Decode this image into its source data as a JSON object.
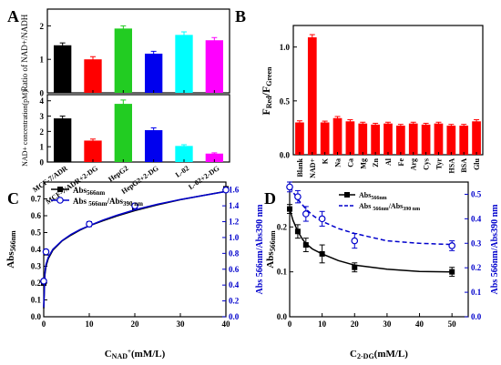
{
  "panels": {
    "A": "A",
    "B": "B",
    "C": "C",
    "D": "D"
  },
  "colors": {
    "black": "#000000",
    "red": "#ff0000",
    "green": "#22cc22",
    "blue": "#0000ee",
    "cyan": "#00ffff",
    "magenta": "#ff00ff",
    "axis_blue": "#0000cc"
  },
  "chart_data": [
    {
      "id": "A-top",
      "type": "bar",
      "ylabel": "Ratio of NAD+/NADH",
      "ylim": [
        0,
        2.5
      ],
      "yticks": [
        0,
        1,
        2
      ],
      "categories": [
        "MCF-7/ADR",
        "MCF-7/ADR+2-DG",
        "HepG2",
        "HepG2+2-DG",
        "L-02",
        "L-02+2-DG"
      ],
      "values": [
        1.42,
        1.0,
        1.92,
        1.17,
        1.73,
        1.57
      ],
      "errors": [
        0.07,
        0.08,
        0.08,
        0.07,
        0.09,
        0.08
      ],
      "bar_colors": [
        "#000000",
        "#ff0000",
        "#22cc22",
        "#0000ee",
        "#00ffff",
        "#ff00ff"
      ]
    },
    {
      "id": "A-bottom",
      "type": "bar",
      "ylabel": "NAD+ concentration(pM)",
      "ylim": [
        0,
        4.4
      ],
      "yticks": [
        0,
        1,
        2,
        3,
        4
      ],
      "categories": [
        "MCF-7/ADR",
        "MCF-7/ADR+2-DG",
        "HepG2",
        "HepG2+2-DG",
        "L-02",
        "L-02+2-DG"
      ],
      "values": [
        2.85,
        1.4,
        3.8,
        2.08,
        1.05,
        0.55
      ],
      "errors": [
        0.15,
        0.1,
        0.25,
        0.15,
        0.08,
        0.05
      ],
      "bar_colors": [
        "#000000",
        "#ff0000",
        "#22cc22",
        "#0000ee",
        "#00ffff",
        "#ff00ff"
      ],
      "xtick_labels": [
        "MCF-7/ADR",
        "MCF-7/ADR+2-DG",
        "HepG2",
        "HepG2+2-DG",
        "L-02",
        "L-02+2-DG"
      ]
    },
    {
      "id": "B",
      "type": "bar",
      "ylabel": "FRed/FGreen",
      "ylim": [
        0,
        1.2
      ],
      "yticks": [
        0.0,
        0.5,
        1.0
      ],
      "categories": [
        "Blank",
        "NAD+",
        "K",
        "Na",
        "Ca",
        "Mg",
        "Zn",
        "Al",
        "Fe",
        "Arg",
        "Cys",
        "Tyr",
        "HSA",
        "BSA",
        "Glu"
      ],
      "values": [
        0.3,
        1.09,
        0.3,
        0.34,
        0.31,
        0.29,
        0.28,
        0.29,
        0.27,
        0.29,
        0.28,
        0.29,
        0.27,
        0.27,
        0.31
      ],
      "errors": [
        0.015,
        0.025,
        0.012,
        0.015,
        0.015,
        0.012,
        0.012,
        0.012,
        0.012,
        0.012,
        0.012,
        0.012,
        0.012,
        0.012,
        0.015
      ],
      "bar_color": "#ff0000"
    },
    {
      "id": "C",
      "type": "line",
      "xlabel": "CNAD+(mM/L)",
      "ylabel": "Abs566nm",
      "ylabel_right": "Abs 566nm/Abs390 nm",
      "xlim": [
        0,
        40
      ],
      "xticks": [
        0,
        10,
        20,
        30,
        40
      ],
      "ylim": [
        0,
        0.8
      ],
      "yticks": [
        0.0,
        0.1,
        0.2,
        0.3,
        0.4,
        0.5,
        0.6,
        0.7
      ],
      "ylim_right": [
        0,
        1.7
      ],
      "yticks_right": [
        0.0,
        0.2,
        0.4,
        0.6,
        0.8,
        1.0,
        1.2,
        1.4,
        1.6
      ],
      "legend": [
        "Abs566nm",
        "Abs 566nm/Abs390 nm"
      ],
      "series": [
        {
          "name": "Abs566nm",
          "axis": "left",
          "color": "#000000",
          "marker": "square-filled",
          "x": [
            0,
            0.5,
            10,
            20,
            40
          ],
          "y": [
            0.2,
            0.38,
            0.55,
            0.65,
            0.76
          ],
          "yerr": [
            0.01,
            0.01,
            0.01,
            0.01,
            0.01
          ],
          "fit": [
            [
              0,
              0.05
            ],
            [
              0.25,
              0.25
            ],
            [
              0.5,
              0.3
            ],
            [
              1,
              0.345
            ],
            [
              2,
              0.395
            ],
            [
              4,
              0.45
            ],
            [
              6,
              0.485
            ],
            [
              8,
              0.515
            ],
            [
              10,
              0.54
            ],
            [
              13,
              0.57
            ],
            [
              16,
              0.598
            ],
            [
              20,
              0.63
            ],
            [
              25,
              0.665
            ],
            [
              30,
              0.695
            ],
            [
              35,
              0.72
            ],
            [
              40,
              0.745
            ]
          ]
        },
        {
          "name": "Abs 566nm/Abs390 nm",
          "axis": "right",
          "color": "#0000cc",
          "marker": "circle-open",
          "x": [
            0,
            0.5,
            10,
            20,
            40
          ],
          "y": [
            0.45,
            0.82,
            1.17,
            1.4,
            1.6
          ],
          "yerr": [
            0.02,
            0.02,
            0.03,
            0.02,
            0.02
          ],
          "fit": [
            [
              0,
              0.12
            ],
            [
              0.25,
              0.55
            ],
            [
              0.5,
              0.66
            ],
            [
              1,
              0.75
            ],
            [
              2,
              0.85
            ],
            [
              4,
              0.96
            ],
            [
              6,
              1.04
            ],
            [
              8,
              1.1
            ],
            [
              10,
              1.15
            ],
            [
              13,
              1.22
            ],
            [
              16,
              1.28
            ],
            [
              20,
              1.35
            ],
            [
              25,
              1.42
            ],
            [
              30,
              1.48
            ],
            [
              35,
              1.53
            ],
            [
              40,
              1.58
            ]
          ]
        }
      ]
    },
    {
      "id": "D",
      "type": "line",
      "xlabel": "C2-DG(mM/L)",
      "ylabel": "Abs566nm",
      "ylabel_right": "Abs 566nm/Abs390 nm",
      "xlim": [
        0,
        55
      ],
      "xticks": [
        0,
        10,
        20,
        30,
        40,
        50
      ],
      "ylim": [
        0,
        0.3
      ],
      "yticks": [
        0.0,
        0.1,
        0.2
      ],
      "ylim_right": [
        0,
        0.55
      ],
      "yticks_right": [
        0.0,
        0.1,
        0.2,
        0.3,
        0.4,
        0.5
      ],
      "legend": [
        "Abs566nm",
        "Abs 566nm/Abs390 nm"
      ],
      "series": [
        {
          "name": "Abs566nm",
          "axis": "left",
          "color": "#000000",
          "marker": "square-filled",
          "x": [
            0,
            2.5,
            5,
            10,
            20,
            50
          ],
          "y": [
            0.24,
            0.19,
            0.16,
            0.14,
            0.11,
            0.1
          ],
          "yerr": [
            0.01,
            0.015,
            0.015,
            0.02,
            0.01,
            0.01
          ],
          "fit": [
            [
              0,
              0.24
            ],
            [
              1,
              0.215
            ],
            [
              2.5,
              0.19
            ],
            [
              4,
              0.172
            ],
            [
              5,
              0.163
            ],
            [
              7,
              0.151
            ],
            [
              10,
              0.14
            ],
            [
              15,
              0.125
            ],
            [
              20,
              0.115
            ],
            [
              30,
              0.106
            ],
            [
              40,
              0.101
            ],
            [
              50,
              0.1
            ]
          ]
        },
        {
          "name": "Abs 566nm/Abs390 nm",
          "axis": "right",
          "color": "#0000cc",
          "marker": "circle-open",
          "x": [
            0,
            2.5,
            5,
            10,
            20,
            50
          ],
          "y": [
            0.53,
            0.49,
            0.42,
            0.4,
            0.31,
            0.29
          ],
          "yerr": [
            0.02,
            0.025,
            0.03,
            0.03,
            0.03,
            0.02
          ],
          "fit": [
            [
              0,
              0.53
            ],
            [
              1,
              0.51
            ],
            [
              2.5,
              0.48
            ],
            [
              5,
              0.44
            ],
            [
              7.5,
              0.41
            ],
            [
              10,
              0.39
            ],
            [
              15,
              0.36
            ],
            [
              20,
              0.34
            ],
            [
              30,
              0.31
            ],
            [
              40,
              0.3
            ],
            [
              50,
              0.295
            ]
          ]
        }
      ]
    }
  ]
}
